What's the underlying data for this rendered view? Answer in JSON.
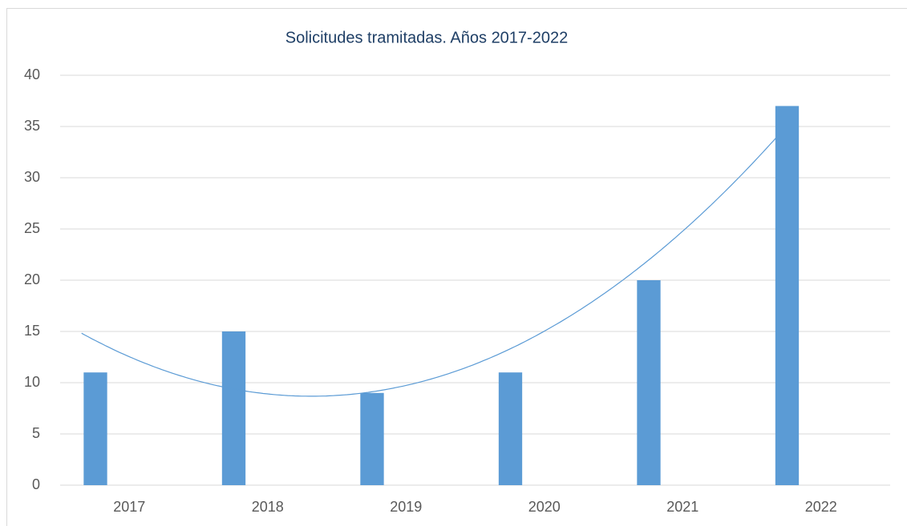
{
  "chart_data": {
    "type": "bar",
    "title": "Solicitudes tramitadas.  Años 2017-2022",
    "categories": [
      "2017",
      "2018",
      "2019",
      "2020",
      "2021",
      "2022"
    ],
    "values": [
      11,
      15,
      9,
      11,
      20,
      37
    ],
    "color": "#5b9bd5",
    "ylim": [
      0,
      40
    ],
    "yticks": [
      0,
      5,
      10,
      15,
      20,
      25,
      30,
      35,
      40
    ],
    "grid": true,
    "trendline": {
      "type": "polynomial",
      "order": 2,
      "color": "#5b9bd5"
    }
  }
}
